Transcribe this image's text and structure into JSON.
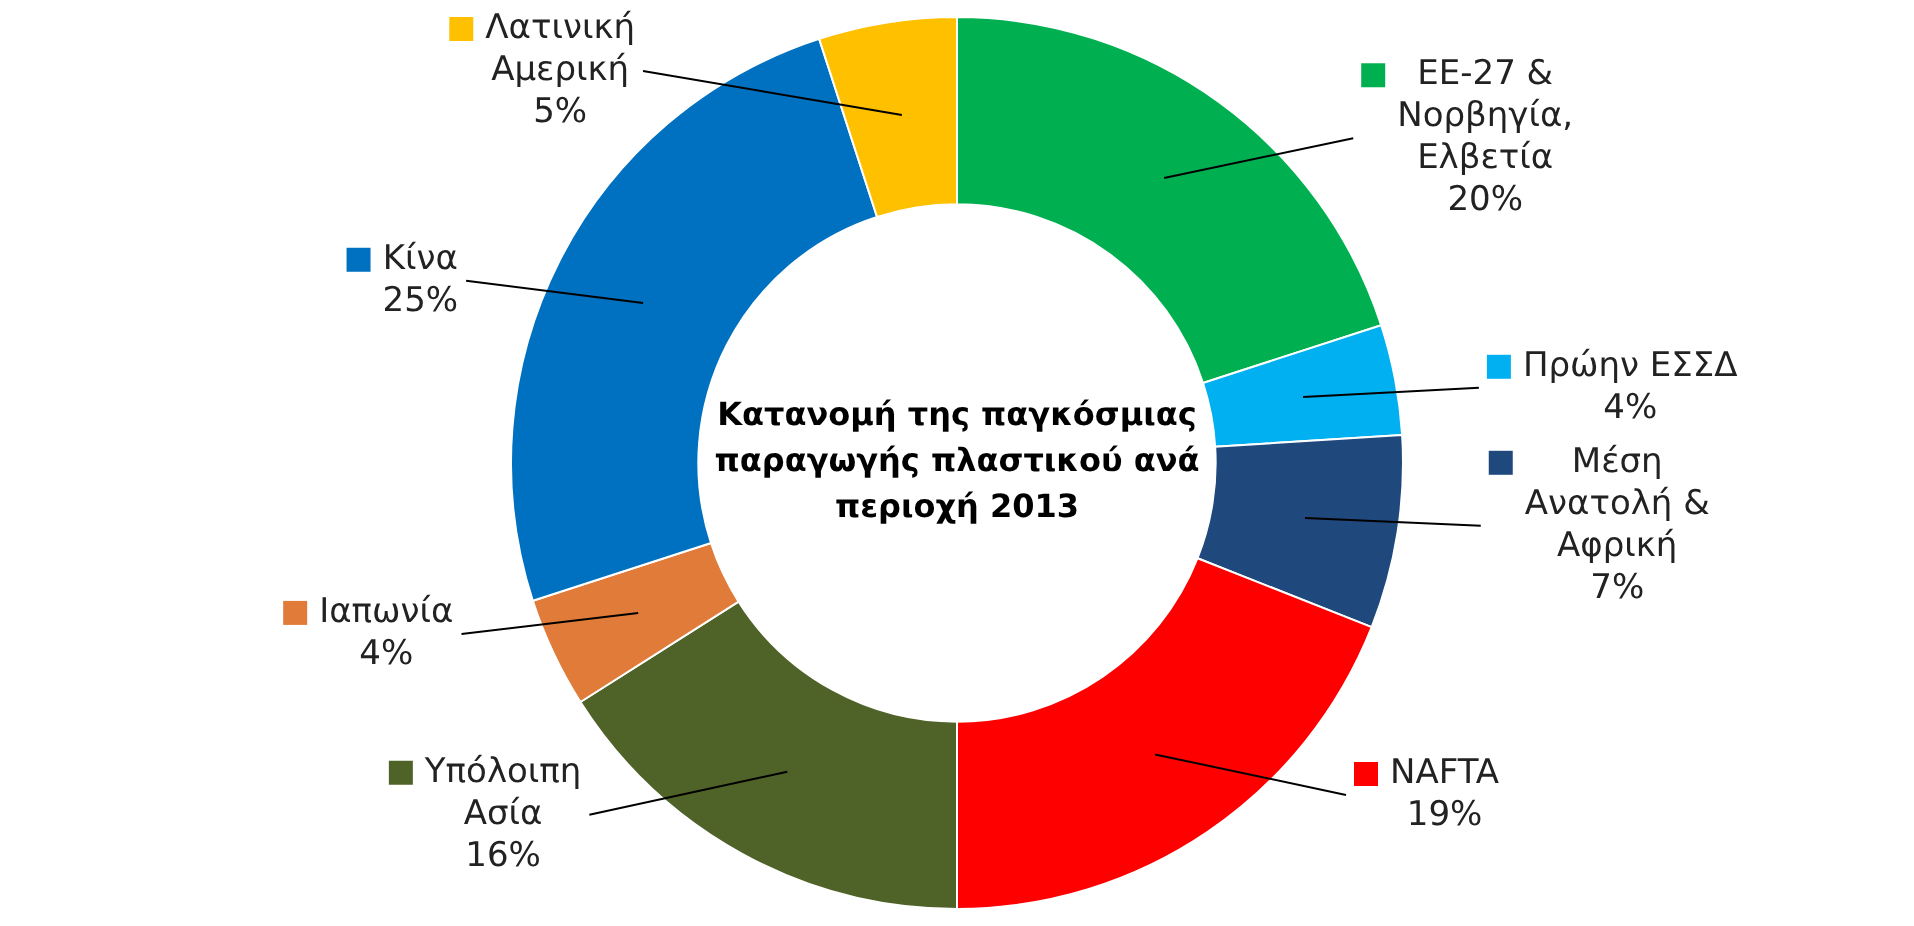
{
  "chart_data": {
    "type": "donut",
    "title": "Κατανομή της παγκόσμιας παραγωγής πλαστικού ανά περιοχή 2013",
    "categories": [
      "ΕΕ-27 & Νορβηγία, Ελβετία",
      "Πρώην ΕΣΣΔ",
      "Μέση Ανατολή & Αφρική",
      "NAFTA",
      "Υπόλοιπη Ασία",
      "Ιαπωνία",
      "Κίνα",
      "Λατινική Αμερική"
    ],
    "values": [
      20,
      4,
      7,
      19,
      16,
      4,
      25,
      5
    ],
    "value_labels": [
      "20%",
      "4%",
      "7%",
      "19%",
      "16%",
      "4%",
      "25%",
      "5%"
    ],
    "colors": [
      "#00b050",
      "#00b0f0",
      "#1f497d",
      "#ff0000",
      "#4f6228",
      "#e07b39",
      "#0070c0",
      "#ffc000"
    ],
    "legend": "right"
  }
}
